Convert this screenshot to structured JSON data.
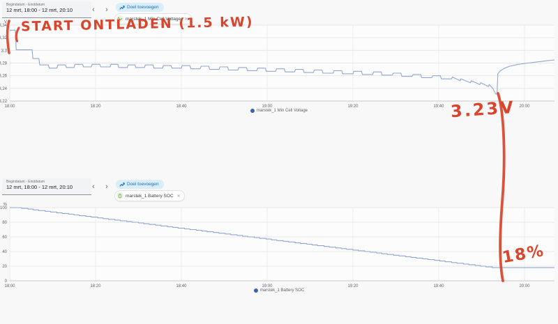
{
  "colors": {
    "line": "#8fa6d0",
    "legend_dot": "#3c62ae",
    "annotation_red": "#d8452c",
    "goal_chip_bg": "#d9edfb",
    "goal_chip_text": "#1a6fc4",
    "sensor_icon_green": "#6faf47"
  },
  "panels": [
    {
      "header": {
        "date_label": "Begindatum - Einddatum",
        "date_value": "12 mrt, 18:00 - 12 mrt, 20:10",
        "prev": "‹",
        "next": "›",
        "goal_chip": "Doel toevoegen",
        "sensor_chip": "marstek_1 Min Cell Voltage",
        "close": "✕"
      },
      "legend": "marstek_1 Min Cell Voltage"
    },
    {
      "header": {
        "date_label": "Begindatum - Einddatum",
        "date_value": "12 mrt, 18:00 - 12 mrt, 20:10",
        "prev": "‹",
        "next": "›",
        "goal_chip": "Doel toevoegen",
        "sensor_chip": "marstek_1 Battery SOC",
        "close": "✕"
      },
      "legend": "marstek_1 Battery SOC"
    }
  ],
  "annotations": {
    "start_text": "START ONTLADEN (1.5 kW)",
    "voltage_text": "3.23V",
    "soc_text": "18%"
  },
  "chart_data": [
    {
      "type": "line",
      "title": "marstek_1 Min Cell Voltage",
      "unit": "V",
      "x_unit": "minutes after 18:00",
      "xlim": [
        0,
        127
      ],
      "ylim": [
        3.22,
        3.34
      ],
      "yticks": [
        3.34,
        3.32,
        3.3,
        3.28,
        3.26,
        3.24,
        3.22
      ],
      "ytick_labels": [
        "3,34",
        "3,32",
        "3,3",
        "3,28",
        "3,26",
        "3,24",
        "3,22"
      ],
      "xticks": [
        0,
        20,
        40,
        60,
        80,
        100,
        120
      ],
      "xtick_labels": [
        "18:00",
        "18:20",
        "18:40",
        "19:00",
        "19:20",
        "19:40",
        "20:00"
      ],
      "grid": true,
      "legend_position": "bottom-center",
      "series": [
        {
          "name": "marstek_1 Min Cell Voltage",
          "color": "#8fa6d0",
          "points": [
            [
              0,
              3.332
            ],
            [
              1.3,
              3.332
            ],
            [
              1.5,
              3.301
            ],
            [
              5.2,
              3.301
            ],
            [
              5.4,
              3.287
            ],
            [
              6.8,
              3.287
            ],
            [
              7,
              3.277
            ],
            [
              9,
              3.277
            ],
            [
              9.2,
              3.272
            ],
            [
              11,
              3.272
            ],
            [
              11.2,
              3.277
            ],
            [
              13,
              3.277
            ],
            [
              13.2,
              3.273
            ],
            [
              15,
              3.273
            ],
            [
              15.2,
              3.278
            ],
            [
              17,
              3.278
            ],
            [
              17.2,
              3.274
            ],
            [
              19,
              3.274
            ],
            [
              19.2,
              3.278
            ],
            [
              21,
              3.278
            ],
            [
              21.2,
              3.274
            ],
            [
              23.4,
              3.274
            ],
            [
              23.6,
              3.278
            ],
            [
              25.2,
              3.278
            ],
            [
              25.4,
              3.273
            ],
            [
              27.4,
              3.273
            ],
            [
              27.6,
              3.277
            ],
            [
              29.2,
              3.277
            ],
            [
              29.4,
              3.273
            ],
            [
              31.4,
              3.273
            ],
            [
              31.6,
              3.277
            ],
            [
              33.4,
              3.277
            ],
            [
              33.6,
              3.272
            ],
            [
              35.6,
              3.272
            ],
            [
              35.8,
              3.276
            ],
            [
              37.6,
              3.276
            ],
            [
              37.8,
              3.272
            ],
            [
              40,
              3.272
            ],
            [
              40.2,
              3.276
            ],
            [
              42,
              3.276
            ],
            [
              42.2,
              3.271
            ],
            [
              44.4,
              3.271
            ],
            [
              44.6,
              3.275
            ],
            [
              46.4,
              3.275
            ],
            [
              46.6,
              3.27
            ],
            [
              48.8,
              3.27
            ],
            [
              49,
              3.274
            ],
            [
              50.8,
              3.274
            ],
            [
              51,
              3.269
            ],
            [
              53.2,
              3.269
            ],
            [
              53.4,
              3.273
            ],
            [
              55.2,
              3.273
            ],
            [
              55.4,
              3.268
            ],
            [
              57.6,
              3.268
            ],
            [
              57.8,
              3.272
            ],
            [
              59.6,
              3.272
            ],
            [
              59.8,
              3.267
            ],
            [
              62,
              3.267
            ],
            [
              62.2,
              3.271
            ],
            [
              64,
              3.271
            ],
            [
              64.2,
              3.266
            ],
            [
              66.4,
              3.266
            ],
            [
              66.6,
              3.27
            ],
            [
              68.4,
              3.27
            ],
            [
              68.6,
              3.265
            ],
            [
              70.8,
              3.265
            ],
            [
              71,
              3.269
            ],
            [
              72.8,
              3.269
            ],
            [
              73,
              3.264
            ],
            [
              75.4,
              3.264
            ],
            [
              75.6,
              3.268
            ],
            [
              77.4,
              3.268
            ],
            [
              77.6,
              3.263
            ],
            [
              80,
              3.263
            ],
            [
              80.2,
              3.267
            ],
            [
              82,
              3.267
            ],
            [
              82.2,
              3.262
            ],
            [
              84.6,
              3.262
            ],
            [
              84.8,
              3.266
            ],
            [
              86.6,
              3.266
            ],
            [
              86.8,
              3.261
            ],
            [
              89.2,
              3.261
            ],
            [
              89.4,
              3.264
            ],
            [
              91.2,
              3.264
            ],
            [
              91.4,
              3.259
            ],
            [
              93.8,
              3.259
            ],
            [
              94,
              3.262
            ],
            [
              95.8,
              3.262
            ],
            [
              96,
              3.257
            ],
            [
              98.4,
              3.257
            ],
            [
              98.6,
              3.26
            ],
            [
              100.4,
              3.26
            ],
            [
              100.6,
              3.255
            ],
            [
              103,
              3.255
            ],
            [
              103.2,
              3.258
            ],
            [
              105,
              3.252
            ],
            [
              105.2,
              3.255
            ],
            [
              107.4,
              3.249
            ],
            [
              107.6,
              3.252
            ],
            [
              109.6,
              3.246
            ],
            [
              109.8,
              3.249
            ],
            [
              111.6,
              3.243
            ],
            [
              111.8,
              3.246
            ],
            [
              112.6,
              3.24
            ],
            [
              113,
              3.235
            ],
            [
              113.3,
              3.231
            ],
            [
              113.6,
              3.231
            ],
            [
              113.8,
              3.263
            ],
            [
              114.4,
              3.268
            ],
            [
              115.4,
              3.272
            ],
            [
              116.6,
              3.275
            ],
            [
              118.6,
              3.278
            ],
            [
              120.8,
              3.28
            ],
            [
              123.2,
              3.282
            ],
            [
              125.6,
              3.284
            ],
            [
              127,
              3.285
            ]
          ]
        }
      ]
    },
    {
      "type": "line",
      "title": "marstek_1 Battery SOC",
      "unit": "%",
      "x_unit": "minutes after 18:00",
      "xlim": [
        0,
        127
      ],
      "ylim": [
        0,
        100
      ],
      "yticks": [
        100,
        80,
        60,
        40,
        20,
        0
      ],
      "ytick_labels": [
        "100",
        "80",
        "60",
        "40",
        "20",
        "0"
      ],
      "xticks": [
        0,
        20,
        40,
        60,
        80,
        100,
        120
      ],
      "xtick_labels": [
        "18:00",
        "18:20",
        "18:40",
        "19:00",
        "19:20",
        "19:40",
        "20:00"
      ],
      "grid": true,
      "legend_position": "bottom-center",
      "series": [
        {
          "name": "marstek_1 Battery SOC",
          "color": "#8fa6d0",
          "render": "stair",
          "quantize": 1,
          "points": [
            [
              0,
              100
            ],
            [
              2,
              100
            ],
            [
              113,
              18
            ],
            [
              127,
              18
            ]
          ]
        }
      ]
    }
  ]
}
